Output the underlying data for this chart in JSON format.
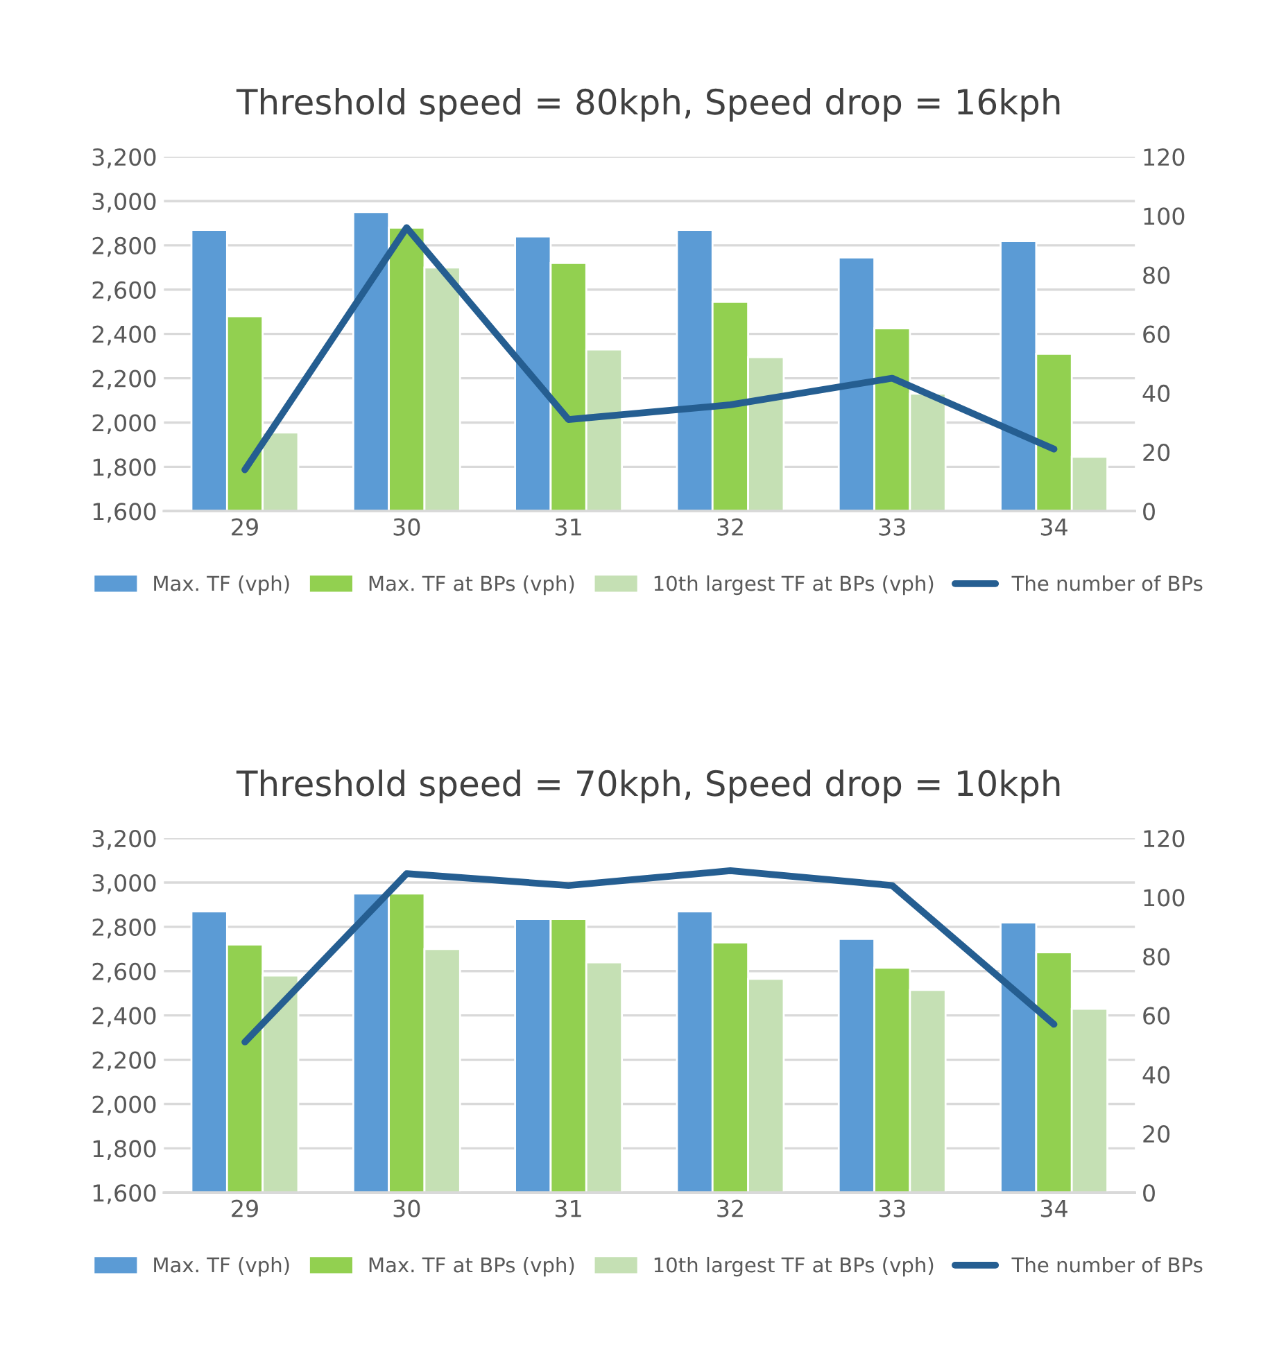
{
  "chart_data": [
    {
      "type": "bar",
      "title": "Threshold speed = 80kph, Speed drop = 16kph",
      "categories": [
        "29",
        "30",
        "31",
        "32",
        "33",
        "34"
      ],
      "series": [
        {
          "name": "Max. TF (vph)",
          "color": "#5b9bd5",
          "values": [
            2870,
            2950,
            2840,
            2870,
            2745,
            2820
          ]
        },
        {
          "name": "Max. TF at BPs (vph)",
          "color": "#92d050",
          "values": [
            2480,
            2880,
            2720,
            2545,
            2425,
            2310
          ]
        },
        {
          "name": "10th largest TF at BPs (vph)",
          "color": "#c5e0b4",
          "values": [
            1955,
            2700,
            2330,
            2295,
            2130,
            1845
          ]
        },
        {
          "name": "The number of BPs",
          "type": "line",
          "axis": "y2",
          "color": "#255e91",
          "values": [
            14,
            96,
            31,
            36,
            45,
            21
          ]
        }
      ],
      "ylim": [
        1600,
        3200
      ],
      "yticks": [
        {
          "value": 1600,
          "label": "1,600"
        },
        {
          "value": 1800,
          "label": "1,800"
        },
        {
          "value": 2000,
          "label": "2,000"
        },
        {
          "value": 2200,
          "label": "2,200"
        },
        {
          "value": 2400,
          "label": "2,400"
        },
        {
          "value": 2600,
          "label": "2,600"
        },
        {
          "value": 2800,
          "label": "2,800"
        },
        {
          "value": 3000,
          "label": "3,000"
        },
        {
          "value": 3200,
          "label": "3,200"
        }
      ],
      "y2lim": [
        0,
        120
      ],
      "y2ticks": [
        0,
        20,
        40,
        60,
        80,
        100,
        120
      ],
      "grid": "y",
      "legend": "bottom"
    },
    {
      "type": "bar",
      "title": "Threshold speed = 70kph, Speed drop = 10kph",
      "categories": [
        "29",
        "30",
        "31",
        "32",
        "33",
        "34"
      ],
      "series": [
        {
          "name": "Max. TF (vph)",
          "color": "#5b9bd5",
          "values": [
            2870,
            2950,
            2835,
            2870,
            2745,
            2820
          ]
        },
        {
          "name": "Max. TF at BPs (vph)",
          "color": "#92d050",
          "values": [
            2720,
            2950,
            2835,
            2730,
            2615,
            2685
          ]
        },
        {
          "name": "10th largest TF at BPs (vph)",
          "color": "#c5e0b4",
          "values": [
            2580,
            2700,
            2640,
            2565,
            2515,
            2430
          ]
        },
        {
          "name": "The number of BPs",
          "type": "line",
          "axis": "y2",
          "color": "#255e91",
          "values": [
            51,
            108,
            104,
            109,
            104,
            57
          ]
        }
      ],
      "ylim": [
        1600,
        3200
      ],
      "yticks": [
        {
          "value": 1600,
          "label": "1,600"
        },
        {
          "value": 1800,
          "label": "1,800"
        },
        {
          "value": 2000,
          "label": "2,000"
        },
        {
          "value": 2200,
          "label": "2,200"
        },
        {
          "value": 2400,
          "label": "2,400"
        },
        {
          "value": 2600,
          "label": "2,600"
        },
        {
          "value": 2800,
          "label": "2,800"
        },
        {
          "value": 3000,
          "label": "3,000"
        },
        {
          "value": 3200,
          "label": "3,200"
        }
      ],
      "y2lim": [
        0,
        120
      ],
      "y2ticks": [
        0,
        20,
        40,
        60,
        80,
        100,
        120
      ],
      "grid": "y",
      "legend": "bottom"
    }
  ]
}
